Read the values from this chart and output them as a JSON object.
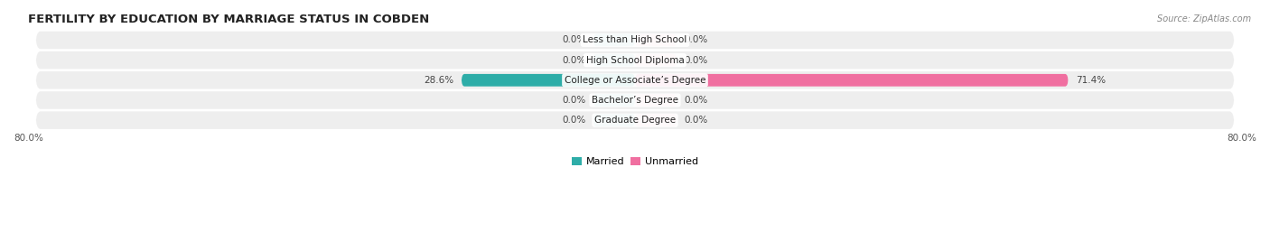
{
  "title": "FERTILITY BY EDUCATION BY MARRIAGE STATUS IN COBDEN",
  "source": "Source: ZipAtlas.com",
  "categories": [
    "Less than High School",
    "High School Diploma",
    "College or Associate’s Degree",
    "Bachelor’s Degree",
    "Graduate Degree"
  ],
  "married_values": [
    0.0,
    0.0,
    28.6,
    0.0,
    0.0
  ],
  "unmarried_values": [
    0.0,
    0.0,
    71.4,
    0.0,
    0.0
  ],
  "axis_left_label": "80.0%",
  "axis_right_label": "80.0%",
  "married_color_dark": "#2eada8",
  "married_color_light": "#88cece",
  "unmarried_color_dark": "#f06fa0",
  "unmarried_color_light": "#f5b8ce",
  "row_bg_color": "#eeeeee",
  "background_color": "#ffffff",
  "title_fontsize": 9.5,
  "source_fontsize": 7,
  "label_fontsize": 7.5,
  "category_fontsize": 7.5,
  "legend_fontsize": 8,
  "x_min": -80,
  "x_max": 80,
  "bar_height": 0.62,
  "small_bar_width": 5.5
}
